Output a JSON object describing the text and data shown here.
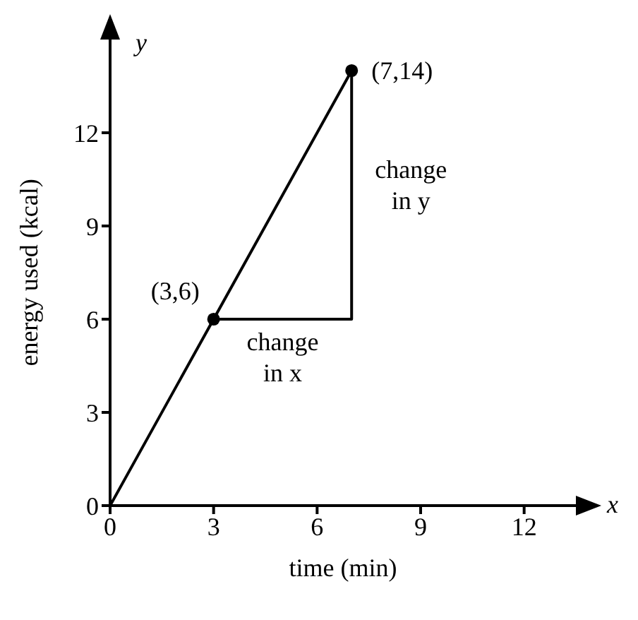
{
  "chart_data": {
    "type": "line",
    "xlabel": "time (min)",
    "ylabel": "energy used (kcal)",
    "xlim": [
      0,
      13.5
    ],
    "ylim": [
      0,
      15
    ],
    "xticks": [
      0,
      3,
      6,
      9,
      12
    ],
    "yticks": [
      0,
      3,
      6,
      9,
      12
    ],
    "grid": false,
    "series": [
      {
        "x": [
          0,
          3,
          7
        ],
        "values": [
          0,
          6,
          14
        ],
        "color": "#000000",
        "marker": "none"
      },
      {
        "type": "line",
        "x": [
          3,
          7,
          7
        ],
        "values": [
          6,
          6,
          14
        ],
        "color": "#000000",
        "marker": "none"
      },
      {
        "type": "scatter",
        "x": [
          3,
          7
        ],
        "values": [
          6,
          14
        ],
        "color": "#000000",
        "marker": "circle"
      }
    ],
    "annotations": [
      {
        "text": "(3,6)",
        "x": 3,
        "y": 6
      },
      {
        "text": "(7,14)",
        "x": 7,
        "y": 14
      },
      {
        "text": "change in x",
        "x": 5,
        "y": 6
      },
      {
        "text": "change in y",
        "x": 7,
        "y": 10
      },
      "x",
      "y"
    ]
  }
}
